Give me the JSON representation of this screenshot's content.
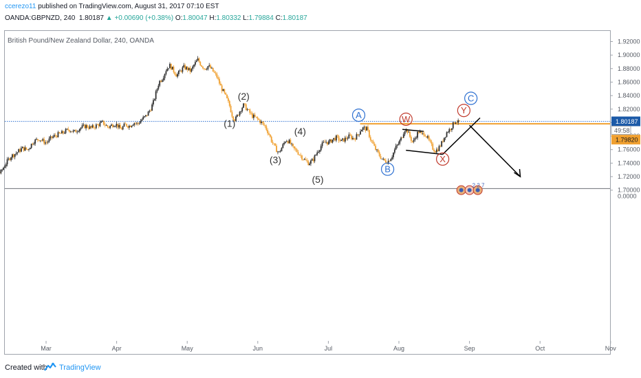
{
  "header": {
    "author": "ccerezo11",
    "published_text": "published on TradingView.com, August 31, 2017 07:10 EST",
    "symbol": "OANDA:GBPNZD, 240",
    "last": "1.80187",
    "change": "▲ +0.00690 (+0.38%)",
    "o_label": "O:",
    "o_value": "1.80047",
    "h_label": "H:",
    "h_value": "1.80332",
    "l_label": "L:",
    "l_value": "1.79884",
    "c_label": "C:",
    "c_value": "1.80187"
  },
  "footer": {
    "created_with": "Created with",
    "brand": "TradingView"
  },
  "colors": {
    "up_candle": "#2f2f2f",
    "down_candle": "#f0a030",
    "current_line": "#2c6fd1",
    "level_line": "#f0a030",
    "label_current": "#1c5aa8",
    "label_level": "#f0a030",
    "blue_circle": "#2c6fd1",
    "red_circle": "#c0392b"
  },
  "chart_data": {
    "type": "candlestick",
    "title": "British Pound/New Zealand Dollar, 240, OANDA",
    "ylim": [
      1.69,
      1.93
    ],
    "y_ticks": [
      "1.92000",
      "1.90000",
      "1.88000",
      "1.86000",
      "1.84000",
      "1.82000",
      "1.80000",
      "1.78000",
      "1.76000",
      "1.74000",
      "1.72000",
      "1.70000"
    ],
    "volume_tick": "0.0000",
    "x_ticks": [
      "Mar",
      "Apr",
      "May",
      "Jun",
      "Jul",
      "Aug",
      "Sep",
      "Oct",
      "Nov"
    ],
    "x_tick_pos": [
      1,
      2,
      3,
      4,
      5,
      6,
      7,
      8,
      9
    ],
    "current_price": 1.80187,
    "current_label": "1.80187",
    "countdown_label": "49:58",
    "level_price": 1.7982,
    "level_label": "1.79820",
    "price_path": [
      [
        0.0,
        1.745
      ],
      [
        0.05,
        1.742
      ],
      [
        0.1,
        1.737
      ],
      [
        0.15,
        1.74
      ],
      [
        0.2,
        1.732
      ],
      [
        0.25,
        1.738
      ],
      [
        0.3,
        1.728
      ],
      [
        0.35,
        1.725
      ],
      [
        0.42,
        1.738
      ],
      [
        0.5,
        1.75
      ],
      [
        0.58,
        1.755
      ],
      [
        0.66,
        1.762
      ],
      [
        0.74,
        1.76
      ],
      [
        0.82,
        1.772
      ],
      [
        0.9,
        1.776
      ],
      [
        1.0,
        1.77
      ],
      [
        1.08,
        1.778
      ],
      [
        1.16,
        1.782
      ],
      [
        1.24,
        1.785
      ],
      [
        1.32,
        1.79
      ],
      [
        1.4,
        1.786
      ],
      [
        1.48,
        1.792
      ],
      [
        1.56,
        1.795
      ],
      [
        1.64,
        1.792
      ],
      [
        1.72,
        1.796
      ],
      [
        1.8,
        1.8
      ],
      [
        1.88,
        1.793
      ],
      [
        1.96,
        1.798
      ],
      [
        2.0,
        1.797
      ],
      [
        2.06,
        1.79
      ],
      [
        2.12,
        1.797
      ],
      [
        2.18,
        1.795
      ],
      [
        2.24,
        1.8
      ],
      [
        2.3,
        1.798
      ],
      [
        2.36,
        1.805
      ],
      [
        2.42,
        1.81
      ],
      [
        2.48,
        1.82
      ],
      [
        2.52,
        1.83
      ],
      [
        2.56,
        1.845
      ],
      [
        2.6,
        1.86
      ],
      [
        2.65,
        1.866
      ],
      [
        2.7,
        1.878
      ],
      [
        2.75,
        1.885
      ],
      [
        2.8,
        1.878
      ],
      [
        2.85,
        1.87
      ],
      [
        2.9,
        1.876
      ],
      [
        2.95,
        1.882
      ],
      [
        3.0,
        1.88
      ],
      [
        3.05,
        1.876
      ],
      [
        3.1,
        1.886
      ],
      [
        3.15,
        1.893
      ],
      [
        3.2,
        1.885
      ],
      [
        3.25,
        1.88
      ],
      [
        3.3,
        1.884
      ],
      [
        3.35,
        1.878
      ],
      [
        3.42,
        1.868
      ],
      [
        3.48,
        1.852
      ],
      [
        3.54,
        1.84
      ],
      [
        3.6,
        1.825
      ],
      [
        3.64,
        1.81
      ],
      [
        3.68,
        1.804
      ],
      [
        3.72,
        1.812
      ],
      [
        3.76,
        1.82
      ],
      [
        3.8,
        1.826
      ],
      [
        3.86,
        1.818
      ],
      [
        3.92,
        1.81
      ],
      [
        4.0,
        1.805
      ],
      [
        4.05,
        1.8
      ],
      [
        4.1,
        1.795
      ],
      [
        4.15,
        1.785
      ],
      [
        4.2,
        1.772
      ],
      [
        4.25,
        1.762
      ],
      [
        4.3,
        1.755
      ],
      [
        4.35,
        1.765
      ],
      [
        4.4,
        1.775
      ],
      [
        4.45,
        1.771
      ],
      [
        4.5,
        1.762
      ],
      [
        4.55,
        1.758
      ],
      [
        4.6,
        1.752
      ],
      [
        4.66,
        1.745
      ],
      [
        4.72,
        1.74
      ],
      [
        4.78,
        1.744
      ],
      [
        4.84,
        1.756
      ],
      [
        4.9,
        1.766
      ],
      [
        4.96,
        1.772
      ],
      [
        5.0,
        1.77
      ],
      [
        5.06,
        1.775
      ],
      [
        5.12,
        1.778
      ],
      [
        5.18,
        1.772
      ],
      [
        5.24,
        1.776
      ],
      [
        5.3,
        1.78
      ],
      [
        5.36,
        1.776
      ],
      [
        5.42,
        1.782
      ],
      [
        5.46,
        1.79
      ],
      [
        5.5,
        1.792
      ],
      [
        5.55,
        1.79
      ],
      [
        5.6,
        1.775
      ],
      [
        5.66,
        1.762
      ],
      [
        5.72,
        1.752
      ],
      [
        5.78,
        1.744
      ],
      [
        5.84,
        1.742
      ],
      [
        5.9,
        1.75
      ],
      [
        5.95,
        1.762
      ],
      [
        6.0,
        1.77
      ],
      [
        6.04,
        1.778
      ],
      [
        6.08,
        1.79
      ],
      [
        6.12,
        1.788
      ],
      [
        6.16,
        1.778
      ],
      [
        6.2,
        1.77
      ],
      [
        6.24,
        1.78
      ],
      [
        6.28,
        1.787
      ],
      [
        6.32,
        1.782
      ],
      [
        6.36,
        1.785
      ],
      [
        6.4,
        1.778
      ],
      [
        6.44,
        1.77
      ],
      [
        6.48,
        1.762
      ],
      [
        6.52,
        1.758
      ],
      [
        6.56,
        1.762
      ],
      [
        6.6,
        1.768
      ],
      [
        6.64,
        1.778
      ],
      [
        6.68,
        1.786
      ],
      [
        6.72,
        1.79
      ],
      [
        6.76,
        1.796
      ],
      [
        6.8,
        1.803
      ],
      [
        6.84,
        1.8
      ],
      [
        6.87,
        1.802
      ]
    ],
    "annotations": [
      {
        "text": "(1)",
        "x": 3.6,
        "y": 1.799,
        "style": "plain"
      },
      {
        "text": "(2)",
        "x": 3.8,
        "y": 1.839,
        "style": "plain"
      },
      {
        "text": "(3)",
        "x": 4.25,
        "y": 1.745,
        "style": "plain"
      },
      {
        "text": "(4)",
        "x": 4.6,
        "y": 1.787,
        "style": "plain"
      },
      {
        "text": "(5)",
        "x": 4.85,
        "y": 1.716,
        "style": "plain"
      },
      {
        "text": "A",
        "x": 5.43,
        "y": 1.811,
        "style": "blue"
      },
      {
        "text": "B",
        "x": 5.84,
        "y": 1.731,
        "style": "blue"
      },
      {
        "text": "C",
        "x": 7.02,
        "y": 1.836,
        "style": "blue"
      },
      {
        "text": "W",
        "x": 6.1,
        "y": 1.805,
        "style": "red"
      },
      {
        "text": "X",
        "x": 6.62,
        "y": 1.746,
        "style": "red"
      },
      {
        "text": "Y",
        "x": 6.92,
        "y": 1.818,
        "style": "red"
      }
    ],
    "trend_lines": [
      [
        [
          6.05,
          1.79
        ],
        [
          6.35,
          1.787
        ]
      ],
      [
        [
          6.1,
          1.759
        ],
        [
          6.62,
          1.753
        ]
      ],
      [
        [
          6.62,
          1.753
        ],
        [
          7.15,
          1.807
        ]
      ],
      [
        [
          7.0,
          1.796
        ],
        [
          7.72,
          1.72
        ]
      ]
    ],
    "arrow_end": [
      7.72,
      1.72
    ],
    "event_badge": "2 2 7",
    "event_x": 7.02,
    "event_y": 1.7,
    "volume_tick_y": 1.685
  }
}
